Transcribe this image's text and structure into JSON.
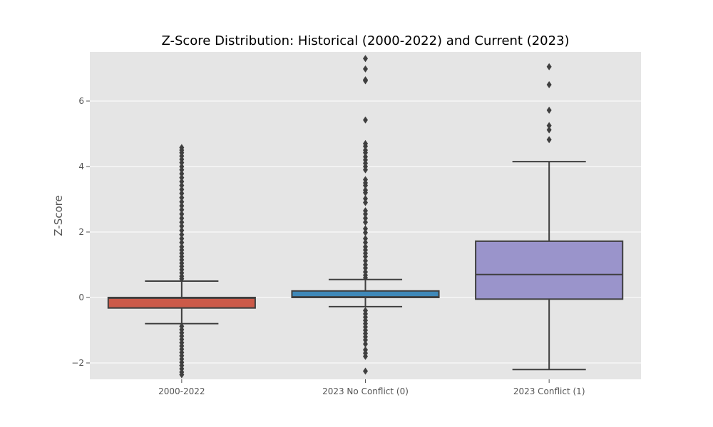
{
  "chart_data": {
    "type": "box",
    "title": "Z-Score Distribution: Historical (2000-2022) and Current (2023)",
    "xlabel": "",
    "ylabel": "Z-Score",
    "ylim": [
      -2.5,
      7.5
    ],
    "yticks": [
      -2,
      0,
      2,
      4,
      6
    ],
    "ytick_labels": [
      "−2",
      "0",
      "2",
      "4",
      "6"
    ],
    "grid": true,
    "colors": {
      "background": "#E5E5E5",
      "grid": "#FFFFFF",
      "line": "#3F3F3F"
    },
    "groups": [
      {
        "label": "2000-2022",
        "color": "#CC5A49",
        "whisker_low": -0.8,
        "q1": -0.32,
        "median": -0.02,
        "q3": 0.0,
        "whisker_high": 0.5,
        "outliers": [
          4.58,
          4.5,
          4.42,
          4.32,
          4.22,
          4.12,
          4.0,
          3.9,
          3.78,
          3.66,
          3.54,
          3.42,
          3.3,
          3.18,
          3.05,
          2.92,
          2.8,
          2.68,
          2.55,
          2.42,
          2.3,
          2.18,
          2.05,
          1.92,
          1.8,
          1.68,
          1.55,
          1.45,
          1.35,
          1.25,
          1.15,
          1.05,
          0.95,
          0.85,
          0.75,
          0.65,
          0.57,
          -0.88,
          -0.98,
          -1.08,
          -1.18,
          -1.28,
          -1.38,
          -1.48,
          -1.58,
          -1.68,
          -1.78,
          -1.88,
          -1.98,
          -2.08,
          -2.18,
          -2.28,
          -2.36
        ]
      },
      {
        "label": "2023 No Conflict (0)",
        "color": "#3F88B8",
        "whisker_low": -0.28,
        "q1": 0.0,
        "median": 0.02,
        "q3": 0.2,
        "whisker_high": 0.55,
        "outliers": [
          7.3,
          6.98,
          6.65,
          6.62,
          5.42,
          4.7,
          4.62,
          4.5,
          4.42,
          4.3,
          4.2,
          4.1,
          4.0,
          3.9,
          3.6,
          3.5,
          3.42,
          3.28,
          3.2,
          3.02,
          2.9,
          2.65,
          2.55,
          2.42,
          2.3,
          2.1,
          1.98,
          1.8,
          1.68,
          1.55,
          1.45,
          1.35,
          1.25,
          1.12,
          1.0,
          0.9,
          0.78,
          0.68,
          0.6,
          -0.4,
          -0.5,
          -0.6,
          -0.7,
          -0.8,
          -0.9,
          -1.0,
          -1.1,
          -1.2,
          -1.3,
          -1.42,
          -1.6,
          -1.7,
          -1.8,
          -2.25
        ]
      },
      {
        "label": "2023 Conflict (1)",
        "color": "#9A94CB",
        "whisker_low": -2.2,
        "q1": -0.05,
        "median": 0.7,
        "q3": 1.72,
        "whisker_high": 4.15,
        "outliers": [
          7.05,
          6.5,
          5.72,
          5.25,
          5.12,
          4.82
        ]
      }
    ]
  }
}
